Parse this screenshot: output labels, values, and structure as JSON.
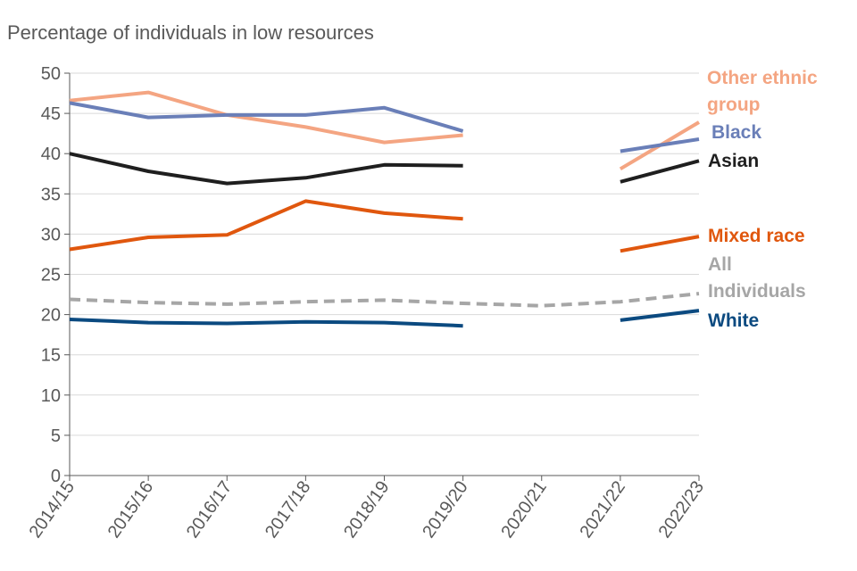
{
  "chart_data": {
    "type": "line",
    "title": "",
    "ylabel": "Percentage of individuals in low resources",
    "xlabel": "",
    "ylim": [
      0,
      50
    ],
    "yticks": [
      0,
      5,
      10,
      15,
      20,
      25,
      30,
      35,
      40,
      45,
      50
    ],
    "grid": true,
    "categories": [
      "2014/15",
      "2015/16",
      "2016/17",
      "2017/18",
      "2018/19",
      "2019/20",
      "2020/21",
      "2021/22",
      "2022/23"
    ],
    "series": [
      {
        "name": "Other ethnic group",
        "label_lines": [
          "Other ethnic",
          "group"
        ],
        "color": "#F4A582",
        "dashed": false,
        "values": [
          46.6,
          47.6,
          44.8,
          43.3,
          41.4,
          42.3,
          null,
          38.1,
          43.9
        ]
      },
      {
        "name": "Black",
        "label_lines": [
          "Black"
        ],
        "color": "#6A7FB8",
        "dashed": false,
        "values": [
          46.3,
          44.5,
          44.8,
          44.8,
          45.7,
          42.8,
          null,
          40.3,
          41.8
        ]
      },
      {
        "name": "Asian",
        "label_lines": [
          "Asian"
        ],
        "color": "#1F1F1F",
        "dashed": false,
        "values": [
          40.0,
          37.8,
          36.3,
          37.0,
          38.6,
          38.5,
          null,
          36.5,
          39.1
        ]
      },
      {
        "name": "Mixed race",
        "label_lines": [
          "Mixed race"
        ],
        "color": "#E0570E",
        "dashed": false,
        "values": [
          28.1,
          29.6,
          29.9,
          34.1,
          32.6,
          31.9,
          null,
          27.9,
          29.7
        ]
      },
      {
        "name": "All Individuals",
        "label_lines": [
          "All",
          "Individuals"
        ],
        "color": "#A6A6A6",
        "dashed": true,
        "values": [
          21.9,
          21.5,
          21.3,
          21.6,
          21.8,
          21.4,
          21.1,
          21.6,
          22.6
        ]
      },
      {
        "name": "White",
        "label_lines": [
          "White"
        ],
        "color": "#0B4A80",
        "dashed": false,
        "values": [
          19.4,
          19.0,
          18.9,
          19.1,
          19.0,
          18.6,
          null,
          19.3,
          20.5
        ]
      }
    ]
  }
}
